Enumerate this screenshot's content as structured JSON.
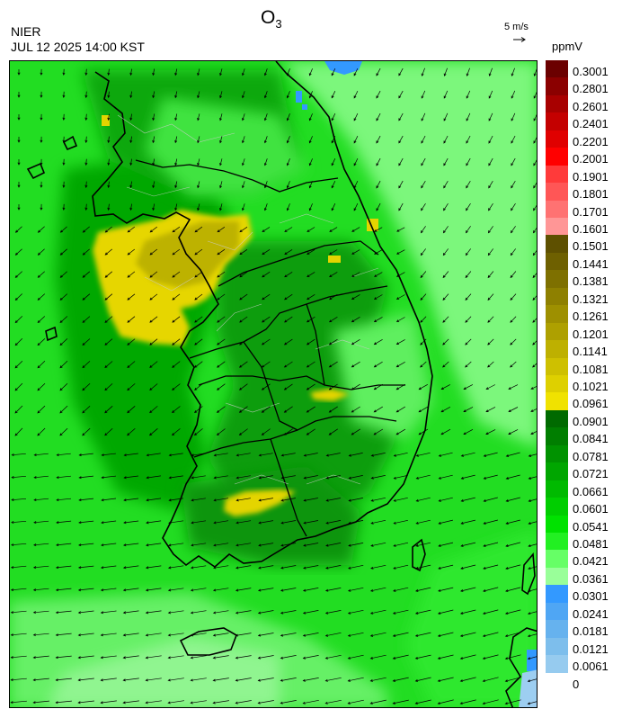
{
  "header": {
    "agency": "NIER",
    "datetime": "JUL 12 2025 14:00 KST",
    "title_main": "O",
    "title_sub": "3"
  },
  "wind_reference": {
    "label": "5 m/s",
    "icon": "arrow-right-icon"
  },
  "legend": {
    "units": "ppmV",
    "bins": [
      {
        "label": "0.3001",
        "color": "#6b0000"
      },
      {
        "label": "0.2801",
        "color": "#8b0000"
      },
      {
        "label": "0.2601",
        "color": "#a80000"
      },
      {
        "label": "0.2401",
        "color": "#c40000"
      },
      {
        "label": "0.2201",
        "color": "#e00000"
      },
      {
        "label": "0.2001",
        "color": "#ff0000"
      },
      {
        "label": "0.1901",
        "color": "#ff3a3a"
      },
      {
        "label": "0.1801",
        "color": "#ff5656"
      },
      {
        "label": "0.1701",
        "color": "#ff7272"
      },
      {
        "label": "0.1601",
        "color": "#ff9696"
      },
      {
        "label": "0.1501",
        "color": "#5e5000"
      },
      {
        "label": "0.1441",
        "color": "#6e6000"
      },
      {
        "label": "0.1381",
        "color": "#7e7000"
      },
      {
        "label": "0.1321",
        "color": "#8e8000"
      },
      {
        "label": "0.1261",
        "color": "#9e9000"
      },
      {
        "label": "0.1201",
        "color": "#aea000"
      },
      {
        "label": "0.1141",
        "color": "#beb000"
      },
      {
        "label": "0.1081",
        "color": "#cec000"
      },
      {
        "label": "0.1021",
        "color": "#ded000"
      },
      {
        "label": "0.0961",
        "color": "#f0e200"
      },
      {
        "label": "0.0901",
        "color": "#006a00"
      },
      {
        "label": "0.0841",
        "color": "#007e00"
      },
      {
        "label": "0.0781",
        "color": "#009200"
      },
      {
        "label": "0.0721",
        "color": "#00a600"
      },
      {
        "label": "0.0661",
        "color": "#00ba00"
      },
      {
        "label": "0.0601",
        "color": "#00ce00"
      },
      {
        "label": "0.0541",
        "color": "#00e200"
      },
      {
        "label": "0.0481",
        "color": "#22f022"
      },
      {
        "label": "0.0421",
        "color": "#66ff66"
      },
      {
        "label": "0.0361",
        "color": "#99ff99"
      },
      {
        "label": "0.0301",
        "color": "#3399ff"
      },
      {
        "label": "0.0241",
        "color": "#4fa6f4"
      },
      {
        "label": "0.0181",
        "color": "#66b2ee"
      },
      {
        "label": "0.0121",
        "color": "#7dbeec"
      },
      {
        "label": "0.0061",
        "color": "#96cbef"
      },
      {
        "label": "0",
        "color": ""
      }
    ]
  }
}
